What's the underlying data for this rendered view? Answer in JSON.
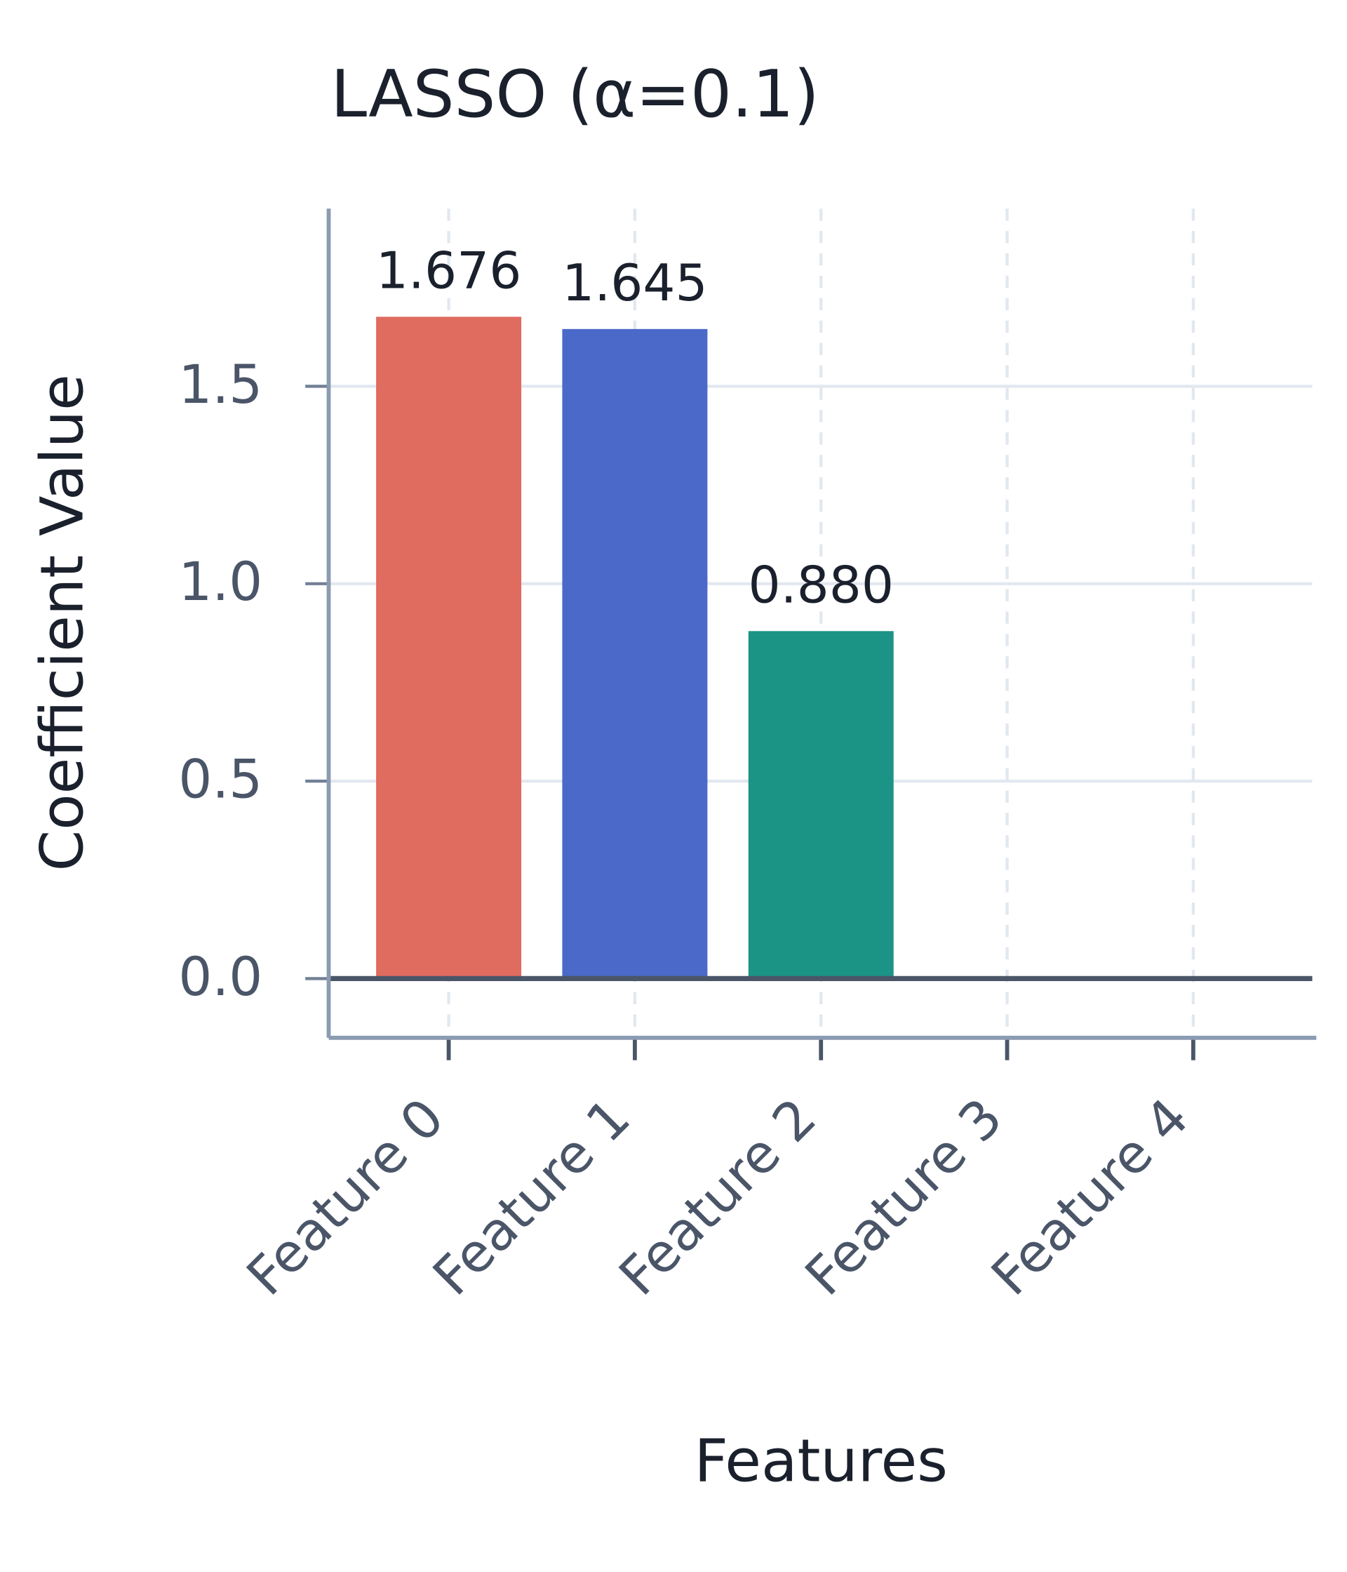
{
  "chart_data": {
    "type": "bar",
    "title": "LASSO (α=0.1)",
    "x_label": "Features",
    "y_label": "Coefficient Value",
    "categories": [
      "Feature 0",
      "Feature 1",
      "Feature 2",
      "Feature 3",
      "Feature 4"
    ],
    "values": [
      1.676,
      1.645,
      0.88,
      0,
      0
    ],
    "value_labels": [
      "1.676",
      "1.645",
      "0.880",
      null,
      null
    ],
    "colors": [
      "#e06b5f",
      "#4a69c8",
      "#1b9385",
      null,
      null
    ],
    "ylim": [
      -0.15,
      1.95
    ],
    "yticks": [
      {
        "value": 0,
        "label": "0.0"
      },
      0.5,
      {
        "value": 1,
        "label": "1.0"
      },
      1.5
    ],
    "grid": true
  }
}
